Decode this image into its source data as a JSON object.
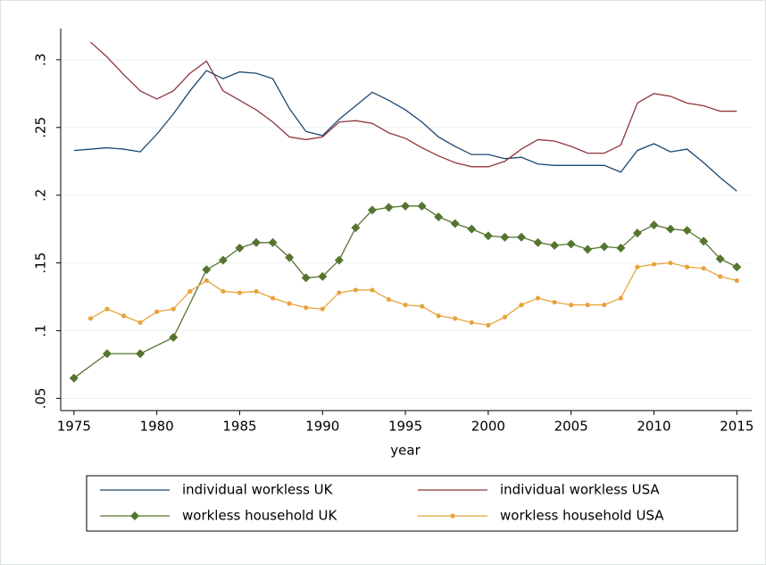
{
  "chart_data": {
    "type": "line",
    "x_label": "year",
    "xlim": [
      1974.2,
      2015.9
    ],
    "xticks": [
      1975,
      1980,
      1985,
      1990,
      1995,
      2000,
      2005,
      2010,
      2015
    ],
    "ylim": [
      0.041,
      0.323
    ],
    "yticks": [
      {
        "value": 0.05,
        "label": ".05"
      },
      {
        "value": 0.1,
        "label": ".1"
      },
      {
        "value": 0.15,
        "label": ".15"
      },
      {
        "value": 0.2,
        "label": ".2"
      },
      {
        "value": 0.25,
        "label": ".25"
      },
      {
        "value": 0.3,
        "label": ".3"
      }
    ],
    "grid": true,
    "series": [
      {
        "name": "individual workless UK",
        "color": "#1a476f",
        "marker": "none",
        "x": [
          1975,
          1976,
          1977,
          1978,
          1979,
          1980,
          1981,
          1982,
          1983,
          1984,
          1985,
          1986,
          1987,
          1988,
          1989,
          1990,
          1991,
          1992,
          1993,
          1994,
          1995,
          1996,
          1997,
          1998,
          1999,
          2000,
          2001,
          2002,
          2003,
          2004,
          2005,
          2006,
          2007,
          2008,
          2009,
          2010,
          2011,
          2012,
          2013,
          2014,
          2015
        ],
        "values": [
          0.233,
          0.234,
          0.235,
          0.234,
          0.232,
          0.245,
          0.26,
          0.277,
          0.292,
          0.286,
          0.291,
          0.29,
          0.286,
          0.264,
          0.247,
          0.244,
          0.256,
          0.266,
          0.276,
          0.27,
          0.263,
          0.254,
          0.243,
          0.236,
          0.23,
          0.23,
          0.227,
          0.228,
          0.223,
          0.222,
          0.222,
          0.222,
          0.222,
          0.217,
          0.233,
          0.238,
          0.232,
          0.234,
          0.224,
          0.213,
          0.203
        ]
      },
      {
        "name": "individual workless USA",
        "color": "#90353b",
        "marker": "none",
        "x": [
          1976,
          1977,
          1978,
          1979,
          1980,
          1981,
          1982,
          1983,
          1984,
          1985,
          1986,
          1987,
          1988,
          1989,
          1990,
          1991,
          1992,
          1993,
          1994,
          1995,
          1996,
          1997,
          1998,
          1999,
          2000,
          2001,
          2002,
          2003,
          2004,
          2005,
          2006,
          2007,
          2008,
          2009,
          2010,
          2011,
          2012,
          2013,
          2014,
          2015
        ],
        "values": [
          0.313,
          0.302,
          0.289,
          0.277,
          0.271,
          0.277,
          0.29,
          0.299,
          0.277,
          0.27,
          0.263,
          0.254,
          0.243,
          0.241,
          0.243,
          0.254,
          0.255,
          0.253,
          0.246,
          0.242,
          0.235,
          0.229,
          0.224,
          0.221,
          0.221,
          0.225,
          0.234,
          0.241,
          0.24,
          0.236,
          0.231,
          0.231,
          0.237,
          0.268,
          0.275,
          0.273,
          0.268,
          0.266,
          0.262,
          0.262
        ]
      },
      {
        "name": "workless household UK",
        "color": "#55752f",
        "marker": "diamond",
        "x": [
          1975,
          1977,
          1979,
          1981,
          1983,
          1984,
          1985,
          1986,
          1987,
          1988,
          1989,
          1990,
          1991,
          1992,
          1993,
          1994,
          1995,
          1996,
          1997,
          1998,
          1999,
          2000,
          2001,
          2002,
          2003,
          2004,
          2005,
          2006,
          2007,
          2008,
          2009,
          2010,
          2011,
          2012,
          2013,
          2014,
          2015
        ],
        "values": [
          0.065,
          0.083,
          0.083,
          0.095,
          0.145,
          0.152,
          0.161,
          0.165,
          0.165,
          0.154,
          0.139,
          0.14,
          0.152,
          0.176,
          0.189,
          0.191,
          0.192,
          0.192,
          0.184,
          0.179,
          0.175,
          0.17,
          0.169,
          0.169,
          0.165,
          0.163,
          0.164,
          0.16,
          0.162,
          0.161,
          0.172,
          0.178,
          0.175,
          0.174,
          0.166,
          0.153,
          0.147
        ]
      },
      {
        "name": "workless household USA",
        "color": "#e8a33c",
        "marker": "circle",
        "x": [
          1976,
          1977,
          1978,
          1979,
          1980,
          1981,
          1982,
          1983,
          1984,
          1985,
          1986,
          1987,
          1988,
          1989,
          1990,
          1991,
          1992,
          1993,
          1994,
          1995,
          1996,
          1997,
          1998,
          1999,
          2000,
          2001,
          2002,
          2003,
          2004,
          2005,
          2006,
          2007,
          2008,
          2009,
          2010,
          2011,
          2012,
          2013,
          2014,
          2015
        ],
        "values": [
          0.109,
          0.116,
          0.111,
          0.106,
          0.114,
          0.116,
          0.129,
          0.137,
          0.129,
          0.128,
          0.129,
          0.124,
          0.12,
          0.117,
          0.116,
          0.128,
          0.13,
          0.13,
          0.123,
          0.119,
          0.118,
          0.111,
          0.109,
          0.106,
          0.104,
          0.11,
          0.119,
          0.124,
          0.121,
          0.119,
          0.119,
          0.119,
          0.124,
          0.147,
          0.149,
          0.15,
          0.147,
          0.146,
          0.14,
          0.137
        ]
      }
    ]
  }
}
